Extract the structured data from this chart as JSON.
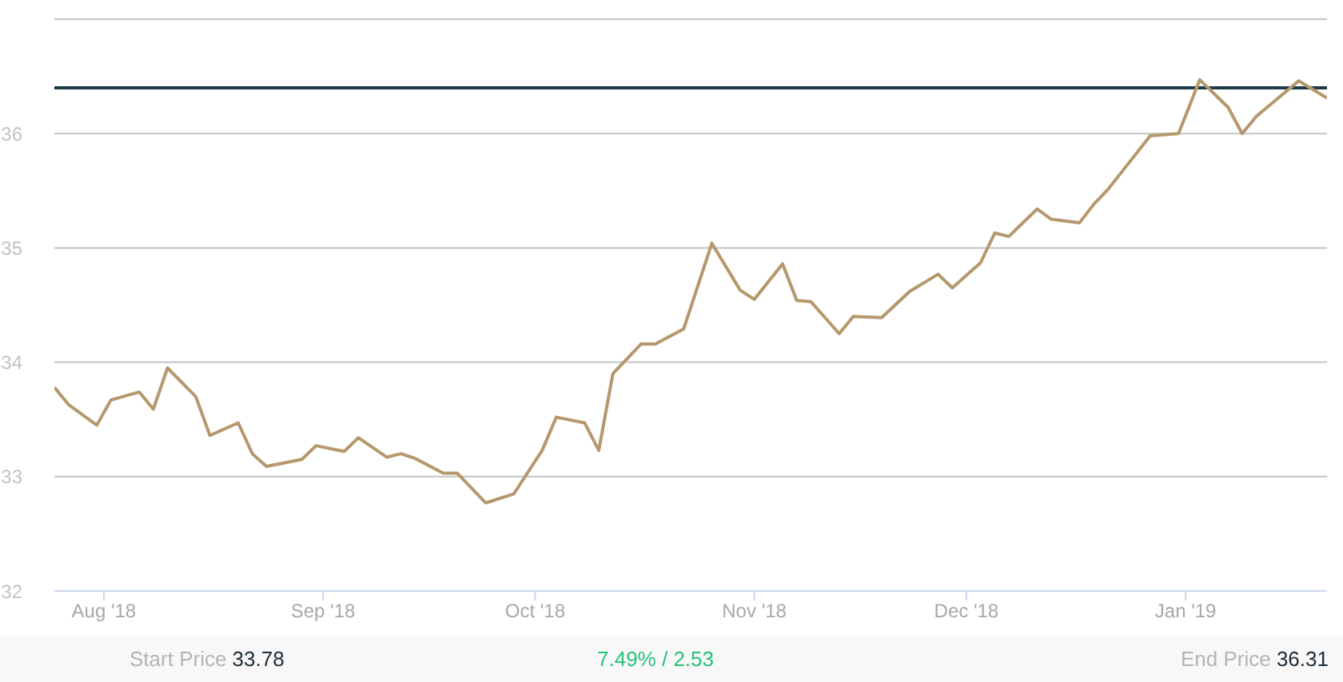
{
  "chart_data": {
    "type": "line",
    "x": [
      "2018-07-25",
      "2018-07-27",
      "2018-07-31",
      "2018-08-02",
      "2018-08-06",
      "2018-08-08",
      "2018-08-10",
      "2018-08-14",
      "2018-08-16",
      "2018-08-20",
      "2018-08-22",
      "2018-08-24",
      "2018-08-29",
      "2018-08-31",
      "2018-09-04",
      "2018-09-06",
      "2018-09-10",
      "2018-09-12",
      "2018-09-14",
      "2018-09-18",
      "2018-09-20",
      "2018-09-24",
      "2018-09-28",
      "2018-10-02",
      "2018-10-04",
      "2018-10-08",
      "2018-10-10",
      "2018-10-12",
      "2018-10-16",
      "2018-10-18",
      "2018-10-22",
      "2018-10-26",
      "2018-10-30",
      "2018-11-01",
      "2018-11-05",
      "2018-11-07",
      "2018-11-09",
      "2018-11-13",
      "2018-11-15",
      "2018-11-19",
      "2018-11-23",
      "2018-11-27",
      "2018-11-29",
      "2018-12-03",
      "2018-12-05",
      "2018-12-07",
      "2018-12-11",
      "2018-12-13",
      "2018-12-17",
      "2018-12-19",
      "2018-12-21",
      "2018-12-27",
      "2018-12-31",
      "2019-01-03",
      "2019-01-07",
      "2019-01-09",
      "2019-01-11",
      "2019-01-17",
      "2019-01-21"
    ],
    "series": [
      {
        "color": "#b5986c",
        "values": [
          33.78,
          33.63,
          33.45,
          33.67,
          33.74,
          33.59,
          33.95,
          33.7,
          33.36,
          33.47,
          33.2,
          33.09,
          33.15,
          33.27,
          33.22,
          33.34,
          33.17,
          33.2,
          33.16,
          33.03,
          33.03,
          32.77,
          32.85,
          33.23,
          33.52,
          33.47,
          33.23,
          33.9,
          34.16,
          34.16,
          34.29,
          35.04,
          34.63,
          34.55,
          34.86,
          34.54,
          34.53,
          34.25,
          34.4,
          34.39,
          34.62,
          34.77,
          34.65,
          34.87,
          35.13,
          35.1,
          35.34,
          35.25,
          35.22,
          35.38,
          35.51,
          35.98,
          36.0,
          36.47,
          36.23,
          36.0,
          36.15,
          36.46,
          36.31
        ]
      }
    ],
    "xlim": [
      "2018-07-25",
      "2019-01-21"
    ],
    "xticks": [
      {
        "value": "2018-08-01",
        "label": "Aug '18"
      },
      {
        "value": "2018-09-01",
        "label": "Sep '18"
      },
      {
        "value": "2018-10-01",
        "label": "Oct '18"
      },
      {
        "value": "2018-11-01",
        "label": "Nov '18"
      },
      {
        "value": "2018-12-01",
        "label": "Dec '18"
      },
      {
        "value": "2019-01-01",
        "label": "Jan '19"
      }
    ],
    "ylim": [
      32,
      37
    ],
    "yticks": [
      32,
      33,
      34,
      35,
      36,
      {
        "value": 37,
        "label": null
      }
    ],
    "grid": "y",
    "ref_lines": [
      {
        "axis": "y",
        "value": 36.4,
        "color": "#1e3a48"
      }
    ],
    "annotations": [
      "Start Price 33.78",
      "7.49% / 2.53",
      "End Price 36.31"
    ]
  }
}
